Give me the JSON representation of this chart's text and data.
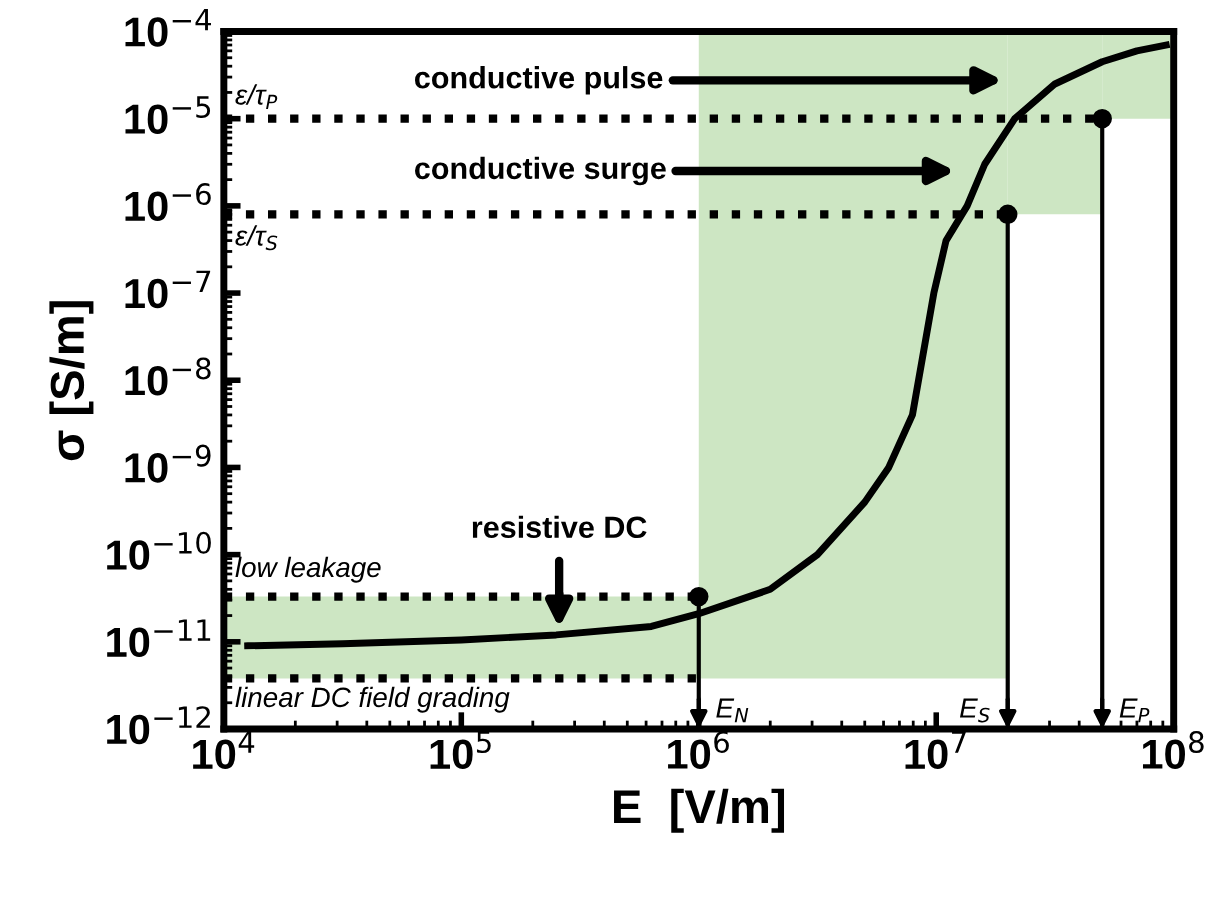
{
  "chart_data": {
    "type": "line",
    "xlabel": "E  [V/m]",
    "ylabel": "σ [S/m]",
    "log": "xy",
    "xlim": [
      10000,
      100000000
    ],
    "ylim": [
      1e-12,
      0.0001
    ],
    "xticks": [
      {
        "value": 10000,
        "label": "10$^{4}$"
      },
      {
        "value": 100000,
        "label": "10$^{5}$"
      },
      {
        "value": 1000000,
        "label": "10$^{6}$"
      },
      {
        "value": 10000000,
        "label": "10$^{7}$"
      },
      {
        "value": 100000000,
        "label": "10$^{8}$"
      }
    ],
    "yticks": [
      {
        "value": 1e-12,
        "label": "10$^{−12}$"
      },
      {
        "value": 1e-11,
        "label": "10$^{−11}$"
      },
      {
        "value": 1e-10,
        "label": "10$^{−10}$"
      },
      {
        "value": 1e-09,
        "label": "10$^{−9}$"
      },
      {
        "value": 1e-08,
        "label": "10$^{−8}$"
      },
      {
        "value": 1e-07,
        "label": "10$^{−7}$"
      },
      {
        "value": 1e-06,
        "label": "10$^{−6}$"
      },
      {
        "value": 1e-05,
        "label": "10$^{−5}$"
      },
      {
        "value": 0.0001,
        "label": "10$^{−4}$"
      }
    ],
    "grid": false,
    "series": [
      {
        "type": "line",
        "color": "#000000",
        "line_style": "dotted",
        "x": [
          10000,
          50000000
        ],
        "values": [
          1e-05,
          1e-05
        ]
      },
      {
        "type": "line",
        "color": "#000000",
        "line_style": "dotted",
        "x": [
          10000,
          20000000
        ],
        "values": [
          8e-07,
          8e-07
        ]
      },
      {
        "type": "line",
        "color": "#000000",
        "line_style": "dotted",
        "x": [
          10000,
          1000000
        ],
        "values": [
          3.3e-11,
          3.3e-11
        ]
      },
      {
        "type": "line",
        "color": "#000000",
        "line_style": "dotted",
        "x": [
          10000,
          1000000
        ],
        "values": [
          3.8e-12,
          3.8e-12
        ]
      },
      {
        "color": "#000000",
        "line_style": "solid",
        "x": [
          12600,
          31600,
          100000,
          251000,
          631000,
          1000000,
          2000000,
          3160000,
          5000000,
          6310000,
          7940000,
          9770000,
          11000000,
          13500000,
          16000000,
          21400000,
          31600000,
          50000000,
          70000000,
          93000000
        ],
        "values": [
          9e-12,
          9.5e-12,
          1.05e-11,
          1.2e-11,
          1.5e-11,
          2.1e-11,
          4e-11,
          1e-10,
          4e-10,
          1e-09,
          4e-09,
          1e-07,
          4e-07,
          1e-06,
          3e-06,
          1e-05,
          2.5e-05,
          4.5e-05,
          6e-05,
          7e-05
        ]
      },
      {
        "type": "lollipop",
        "color": "#000000",
        "x": [
          1000000,
          20000000,
          50000000
        ],
        "values": [
          3.3e-11,
          8e-07,
          1e-05
        ]
      }
    ],
    "annotations": [
      "conductive pulse",
      "conductive surge",
      "resistive DC",
      "ε/τ$_{P}$",
      "ε/τ$_{S}$",
      "low leakage",
      "linear DC field grading",
      "E$_{N}$",
      "E$_{S}$",
      "E$_{P}$"
    ]
  }
}
